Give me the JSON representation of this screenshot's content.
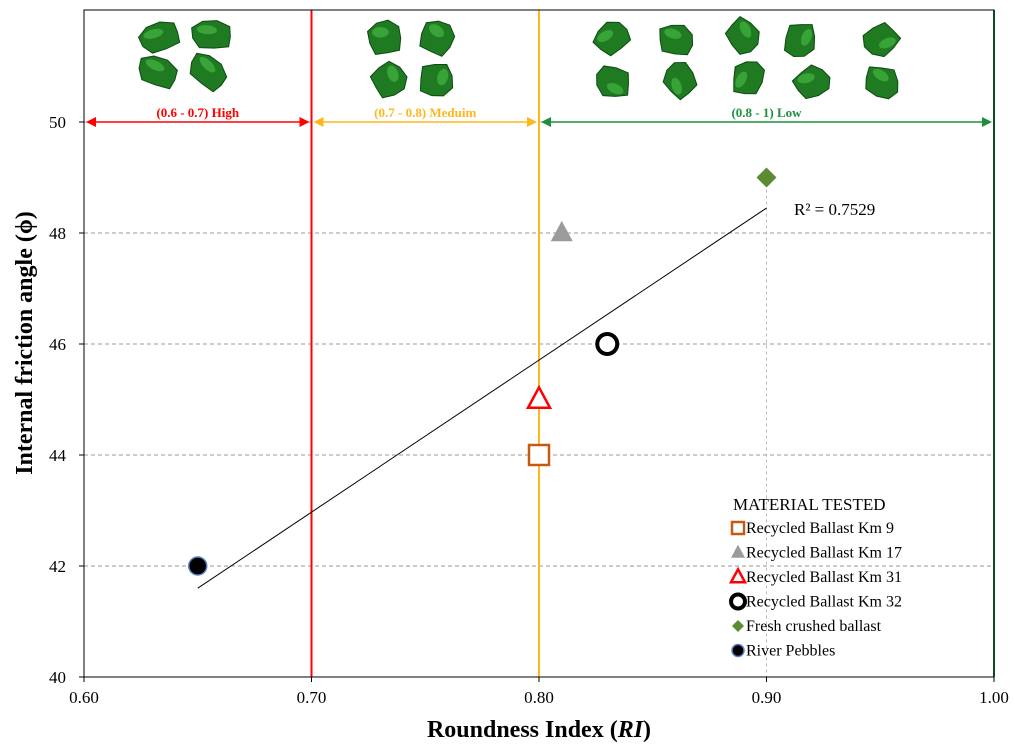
{
  "chart_data": {
    "type": "scatter",
    "title": "",
    "xlabel": "Roundness Index (RI)",
    "xlabel_main": "Roundness Index (",
    "xlabel_italic": "RI",
    "xlabel_close": ")",
    "ylabel": "Internal friction angle (ϕ)",
    "xlim": [
      0.6,
      1.0
    ],
    "ylim": [
      40,
      52
    ],
    "x_ticks": [
      "0.60",
      "0.70",
      "0.80",
      "0.90",
      "1.00"
    ],
    "y_ticks": [
      "40",
      "42",
      "44",
      "46",
      "48",
      "50"
    ],
    "grid": "horizontal dashed",
    "series": [
      {
        "name": "Recycled Ballast Km 9",
        "marker": "square-open",
        "color": "#c55a11",
        "x": [
          0.8
        ],
        "y": [
          44
        ]
      },
      {
        "name": "Recycled Ballast Km 17",
        "marker": "triangle-filled",
        "color": "#9b9b9b",
        "x": [
          0.81
        ],
        "y": [
          48
        ]
      },
      {
        "name": "Recycled Ballast Km 31",
        "marker": "triangle-open",
        "color": "#ff0000",
        "x": [
          0.8
        ],
        "y": [
          45
        ]
      },
      {
        "name": "Recycled Ballast Km 32",
        "marker": "circle-open",
        "color": "#000000",
        "x": [
          0.83
        ],
        "y": [
          46
        ]
      },
      {
        "name": "Fresh crushed ballast",
        "marker": "diamond-filled",
        "color": "#5b8c32",
        "x": [
          0.9
        ],
        "y": [
          49
        ]
      },
      {
        "name": "River Pebbles",
        "marker": "circle-filled",
        "color": "#000000",
        "x": [
          0.65
        ],
        "y": [
          42
        ]
      }
    ],
    "trendline": {
      "x": [
        0.65,
        0.9
      ],
      "y": [
        41.6,
        48.45
      ],
      "label": "R² = 0.7529"
    },
    "zones": [
      {
        "label": "(0.6 - 0.7) High",
        "from": 0.6,
        "to": 0.7,
        "color": "#ff0000"
      },
      {
        "label": "(0.7 - 0.8) Meduim",
        "from": 0.7,
        "to": 0.8,
        "color": "#ffb81c"
      },
      {
        "label": "(0.8 - 1) Low",
        "from": 0.8,
        "to": 1.0,
        "color": "#1f8f3f"
      }
    ],
    "zone_arrow_y": 50,
    "vertical_lines": [
      {
        "x": 0.7,
        "color": "#ff0000"
      },
      {
        "x": 0.8,
        "color": "#ffb81c"
      },
      {
        "x": 1.0,
        "color": "#1f8f3f"
      },
      {
        "x": 0.9,
        "color": "#bbbbbb"
      }
    ],
    "particle_groups": [
      {
        "zone": "high",
        "count": 4
      },
      {
        "zone": "medium",
        "count": 4
      },
      {
        "zone": "low",
        "count": 10
      }
    ],
    "legend": {
      "title": "MATERIAL TESTED",
      "position": "bottom-right"
    }
  }
}
